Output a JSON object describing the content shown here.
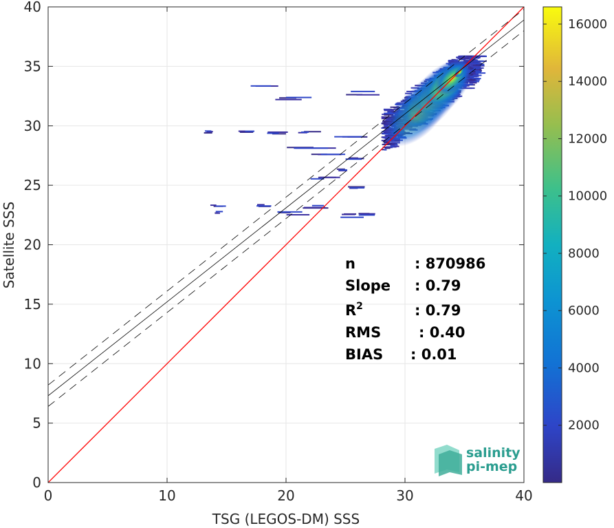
{
  "chart_data": {
    "type": "heatmap",
    "xlabel": "TSG (LEGOS-DM) SSS",
    "ylabel": "Satellite SSS",
    "xlim": [
      0,
      40
    ],
    "ylim": [
      0,
      40
    ],
    "xticks": [
      "0",
      "10",
      "20",
      "30",
      "40"
    ],
    "yticks": [
      "0",
      "5",
      "10",
      "15",
      "20",
      "25",
      "30",
      "35",
      "40"
    ],
    "grid": true,
    "identity_line": {
      "color": "#ff0000",
      "x": [
        0,
        40
      ],
      "y": [
        0,
        40
      ]
    },
    "fit_line": {
      "slope": 0.79,
      "intercept": 7.3
    },
    "fit_band_offset": 0.9,
    "colorbar": {
      "min": 0,
      "max": 16600,
      "ticks": [
        "2000",
        "4000",
        "6000",
        "8000",
        "10000",
        "12000",
        "14000",
        "16000"
      ],
      "colormap": "parula"
    },
    "density_blobs": [
      {
        "x": 34.6,
        "y": 34.5,
        "value": 16000
      },
      {
        "x": 34.0,
        "y": 34.0,
        "value": 9000
      },
      {
        "x": 33.5,
        "y": 33.5,
        "value": 4000
      },
      {
        "x": 33.0,
        "y": 33.0,
        "value": 1500
      },
      {
        "x": 32.0,
        "y": 32.0,
        "value": 600
      },
      {
        "x": 31.0,
        "y": 31.0,
        "value": 300
      }
    ],
    "stats": [
      {
        "label": "n",
        "value": ": 870986"
      },
      {
        "label": "Slope",
        "value": ": 0.79"
      },
      {
        "label": "R",
        "sup": "2",
        "value": ": 0.79"
      },
      {
        "label": "RMS",
        "value": ": 0.40"
      },
      {
        "label": "BIAS",
        "value": ": 0.01"
      }
    ]
  },
  "logo": {
    "line1": "salinity",
    "line2": "pi-mep"
  }
}
